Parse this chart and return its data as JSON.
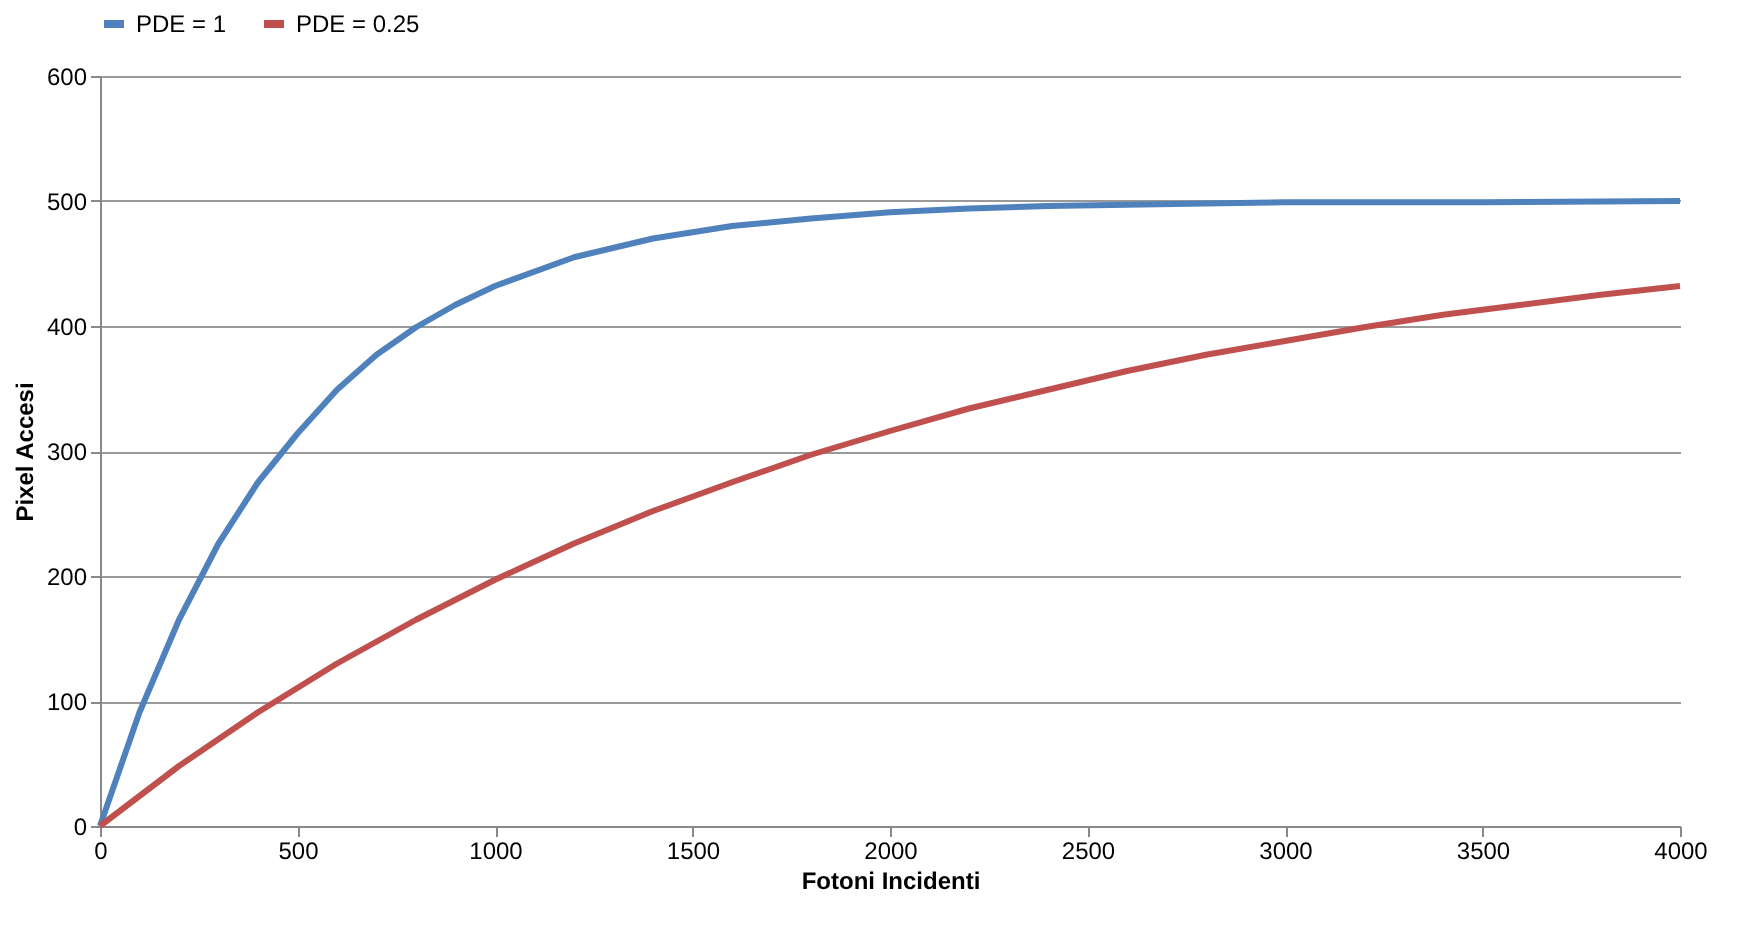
{
  "chart_data": {
    "type": "line",
    "xlabel": "Fotoni Incidenti",
    "ylabel": "Pixel Accesi",
    "xlim": [
      0,
      4000
    ],
    "ylim": [
      0,
      600
    ],
    "xticks": [
      0,
      500,
      1000,
      1500,
      2000,
      2500,
      3000,
      3500,
      4000
    ],
    "yticks": [
      0,
      100,
      200,
      300,
      400,
      500,
      600
    ],
    "grid": "y",
    "legend": "top",
    "marker": "none",
    "line_style": "solid",
    "series": [
      {
        "name": "PDE = 1",
        "color": "#4f81bd",
        "x": [
          0,
          100,
          200,
          300,
          400,
          500,
          600,
          700,
          800,
          900,
          1000,
          1200,
          1400,
          1600,
          1800,
          2000,
          2200,
          2400,
          2600,
          2800,
          3000,
          3500,
          4000
        ],
        "values": [
          0,
          91,
          165,
          226,
          275,
          314,
          349,
          377,
          399,
          417,
          432,
          455,
          470,
          480,
          486,
          491,
          494,
          496,
          497,
          498,
          499,
          499,
          500
        ]
      },
      {
        "name": "PDE = 0.25",
        "color": "#c0504d",
        "x": [
          0,
          200,
          400,
          600,
          800,
          1000,
          1200,
          1400,
          1600,
          1800,
          2000,
          2200,
          2400,
          2600,
          2800,
          3000,
          3200,
          3400,
          3600,
          3800,
          4000
        ],
        "values": [
          0,
          48,
          91,
          130,
          165,
          197,
          226,
          252,
          275,
          297,
          316,
          334,
          349,
          364,
          377,
          388,
          399,
          409,
          417,
          425,
          432
        ]
      }
    ]
  }
}
